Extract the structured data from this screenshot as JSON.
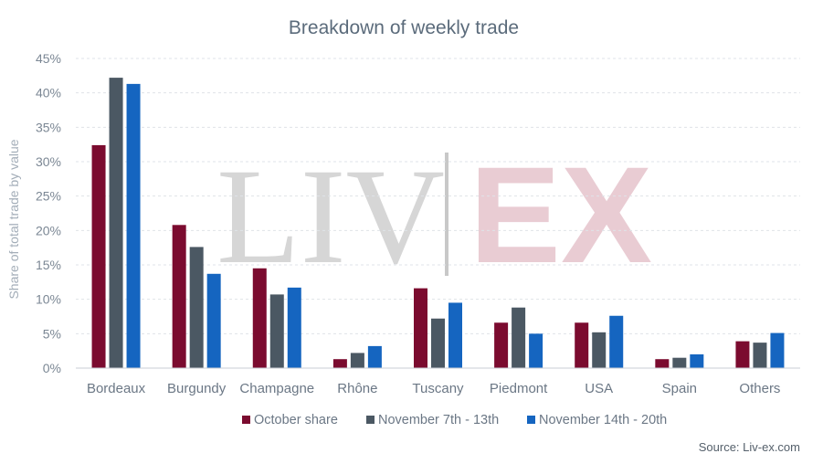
{
  "chart_data": {
    "type": "bar",
    "title": "Breakdown of weekly trade",
    "ylabel": "Share of total trade by value",
    "xlabel": "",
    "ylim": [
      0,
      45
    ],
    "yticks": [
      "0%",
      "5%",
      "10%",
      "15%",
      "20%",
      "25%",
      "30%",
      "35%",
      "40%",
      "45%"
    ],
    "categories": [
      "Bordeaux",
      "Burgundy",
      "Champagne",
      "Rhône",
      "Tuscany",
      "Piedmont",
      "USA",
      "Spain",
      "Others"
    ],
    "series": [
      {
        "name": "October share",
        "color": "#7b0b2f",
        "values": [
          32.4,
          20.8,
          14.5,
          1.3,
          11.6,
          6.6,
          6.6,
          1.3,
          3.9
        ]
      },
      {
        "name": "November 7th - 13th",
        "color": "#4b5863",
        "values": [
          42.2,
          17.6,
          10.7,
          2.2,
          7.2,
          8.8,
          5.2,
          1.5,
          3.7
        ]
      },
      {
        "name": "November 14th - 20th",
        "color": "#1565c0",
        "values": [
          41.3,
          13.7,
          11.7,
          3.2,
          9.5,
          5.0,
          7.6,
          2.0,
          5.1
        ]
      }
    ],
    "grid": true,
    "legend_position": "bottom"
  },
  "watermark": {
    "left": "LIV",
    "right": "EX"
  },
  "source": "Source: Liv-ex.com"
}
